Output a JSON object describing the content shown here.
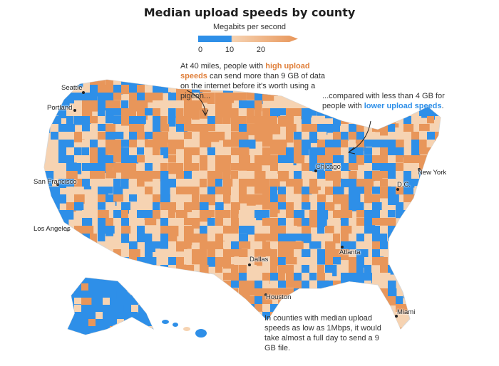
{
  "title": "Median upload speeds by county",
  "legend": {
    "label": "Megabits per second",
    "ticks": [
      "0",
      "10",
      "20"
    ],
    "colors": {
      "low": "#2e8fe8",
      "mid": "#f6d3b2",
      "high": "#e8965a",
      "outline": "#d7d7d7"
    }
  },
  "annotations": {
    "top_pre": "At 40 miles, people with ",
    "top_hi": "high upload speeds",
    "top_post": " can send more than 9 GB of data on the internet before it's worth using a pigeon...",
    "right_pre": "...compared with less than 4 GB for people with ",
    "right_lo": "lower upload speeds",
    "right_post": ".",
    "bottom": "In counties with median upload speeds as low as 1Mbps, it would take almost a full day to send a 9 GB file."
  },
  "cities": [
    {
      "name": "Seattle"
    },
    {
      "name": "Portland"
    },
    {
      "name": "San Francisco"
    },
    {
      "name": "Los Angeles"
    },
    {
      "name": "Dallas"
    },
    {
      "name": "Houston"
    },
    {
      "name": "Chicago"
    },
    {
      "name": "Atlanta"
    },
    {
      "name": "Miami"
    },
    {
      "name": "New York"
    },
    {
      "name": "D.C."
    }
  ]
}
